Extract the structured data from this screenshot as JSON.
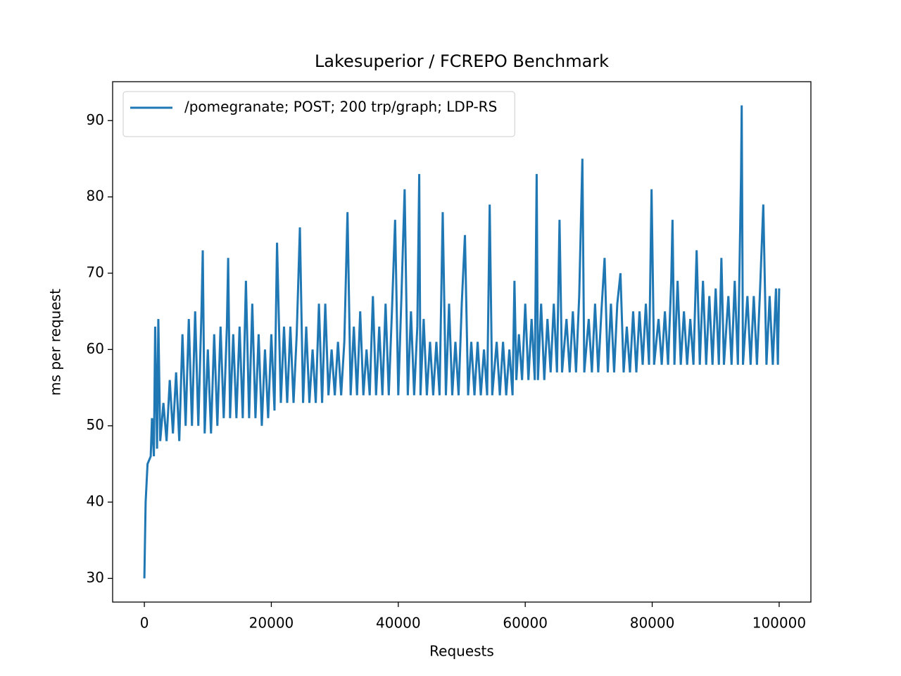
{
  "chart_data": {
    "type": "line",
    "title": "Lakesuperior / FCREPO Benchmark",
    "x_label": "Requests",
    "y_label": "ms per request",
    "xlim": [
      -5000,
      105000
    ],
    "ylim": [
      26.9,
      95.1
    ],
    "xticks": [
      0,
      20000,
      40000,
      60000,
      80000,
      100000
    ],
    "yticks": [
      30,
      40,
      50,
      60,
      70,
      80,
      90
    ],
    "legend_position": "upper-left",
    "x": [
      0,
      200,
      500,
      1000,
      1200,
      1500,
      1700,
      2000,
      2200,
      2500,
      3000,
      3500,
      4000,
      4500,
      5000,
      5500,
      6000,
      6500,
      7000,
      7500,
      8000,
      8500,
      9000,
      9200,
      9500,
      10000,
      10500,
      11000,
      11500,
      12000,
      12500,
      13000,
      13200,
      13500,
      14000,
      14500,
      15000,
      15500,
      16000,
      16500,
      17000,
      17500,
      18000,
      18500,
      19000,
      19500,
      20000,
      20500,
      20900,
      21500,
      22000,
      22500,
      23000,
      23500,
      24000,
      24500,
      25000,
      25500,
      26000,
      26500,
      27000,
      27500,
      28000,
      28500,
      29000,
      29500,
      30000,
      30500,
      31000,
      31500,
      32000,
      32500,
      33000,
      33500,
      34000,
      34500,
      35000,
      35500,
      36000,
      36500,
      37000,
      37500,
      38000,
      38500,
      39000,
      39500,
      40000,
      40500,
      41000,
      41500,
      42000,
      42500,
      43000,
      43300,
      43500,
      44000,
      44500,
      45000,
      45500,
      46000,
      46500,
      47000,
      47500,
      48000,
      48500,
      49000,
      49500,
      50000,
      50500,
      51000,
      51500,
      52000,
      52500,
      53000,
      53500,
      54000,
      54400,
      54800,
      55500,
      56000,
      56500,
      57000,
      57500,
      58000,
      58300,
      58600,
      59000,
      59500,
      60000,
      60500,
      61000,
      61500,
      61800,
      62000,
      62500,
      63000,
      63500,
      64000,
      64500,
      65000,
      65400,
      65800,
      66500,
      67000,
      67500,
      68000,
      68500,
      69000,
      69300,
      70000,
      70500,
      71000,
      71500,
      72000,
      72500,
      73000,
      73500,
      74000,
      74500,
      75000,
      75500,
      76000,
      76500,
      77000,
      77500,
      78000,
      78500,
      79000,
      79500,
      79900,
      80300,
      81000,
      81500,
      82000,
      82500,
      83000,
      83200,
      83500,
      84000,
      84500,
      85000,
      85500,
      86000,
      86500,
      87000,
      87500,
      88000,
      88500,
      89000,
      89500,
      90000,
      90500,
      90900,
      91300,
      92000,
      92500,
      93000,
      93500,
      94000,
      94100,
      94300,
      95000,
      95500,
      96000,
      96500,
      97000,
      97500,
      98000,
      98500,
      99000,
      99500,
      99800,
      100000
    ],
    "series": [
      {
        "name": "/pomegranate; POST; 200 trp/graph; LDP-RS",
        "color": "#1f77b4",
        "values": [
          30,
          40,
          45,
          46,
          51,
          46,
          63,
          47,
          64,
          48,
          53,
          48,
          56,
          49,
          57,
          48,
          62,
          50,
          64,
          50,
          65,
          50,
          65,
          73,
          49,
          60,
          49,
          62,
          50,
          63,
          51,
          63,
          72,
          51,
          62,
          51,
          63,
          51,
          69,
          51,
          66,
          51,
          62,
          50,
          60,
          51,
          62,
          52,
          74,
          53,
          63,
          53,
          63,
          53,
          62,
          76,
          53,
          63,
          53,
          60,
          53,
          66,
          53,
          66,
          54,
          60,
          54,
          61,
          54,
          61,
          78,
          54,
          63,
          54,
          65,
          54,
          60,
          54,
          67,
          54,
          63,
          54,
          66,
          54,
          65,
          77,
          54,
          67,
          81,
          54,
          65,
          54,
          63,
          83,
          54,
          64,
          54,
          61,
          54,
          61,
          54,
          78,
          54,
          66,
          54,
          61,
          54,
          66,
          75,
          54,
          61,
          54,
          61,
          54,
          60,
          54,
          79,
          54,
          61,
          54,
          61,
          54,
          60,
          54,
          69,
          56,
          62,
          56,
          66,
          56,
          64,
          56,
          83,
          56,
          66,
          56,
          64,
          57,
          66,
          57,
          77,
          57,
          64,
          57,
          65,
          57,
          67,
          85,
          57,
          64,
          57,
          66,
          57,
          65,
          72,
          57,
          66,
          57,
          66,
          70,
          57,
          63,
          57,
          65,
          57,
          65,
          58,
          66,
          58,
          81,
          58,
          64,
          58,
          65,
          58,
          69,
          77,
          58,
          69,
          58,
          65,
          58,
          64,
          58,
          73,
          58,
          69,
          58,
          67,
          58,
          68,
          58,
          72,
          58,
          67,
          58,
          69,
          58,
          83,
          92,
          58,
          67,
          58,
          67,
          58,
          68,
          79,
          58,
          67,
          58,
          68,
          58,
          68
        ]
      }
    ]
  }
}
